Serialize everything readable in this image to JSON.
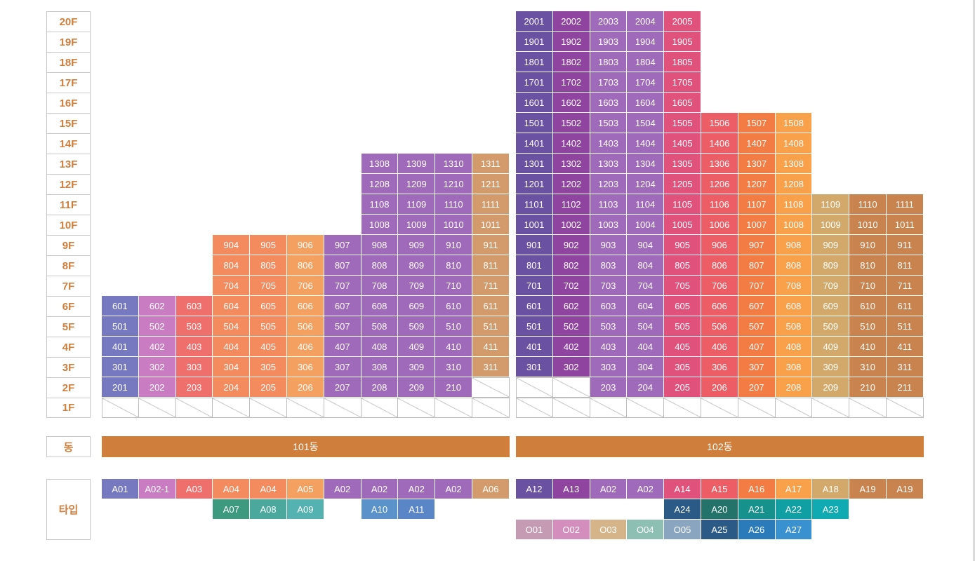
{
  "colors": {
    "A01": "#7679bf",
    "A02-1": "#c97cc1",
    "A03": "#ef6f6c",
    "A04": "#f38b5f",
    "A05": "#f4a061",
    "A02": "#a06aba",
    "A06": "#d39a6c",
    "A07": "#3e9a7e",
    "A08": "#4aa89c",
    "A09": "#54b3b1",
    "A10": "#5b92c9",
    "A11": "#5a85c6",
    "A12": "#6a51a2",
    "A13": "#8f44a0",
    "A14": "#e0517c",
    "A15": "#ec5d66",
    "A16": "#f27c43",
    "A17": "#f8a04a",
    "A18": "#d2a96a",
    "A19": "#c8834f",
    "A24": "#2c5a87",
    "A20": "#23736b",
    "A21": "#16918b",
    "A22": "#10a0a4",
    "A23": "#10aab2",
    "A25": "#2c5a87",
    "A26": "#2b7bbb",
    "A27": "#3991cf",
    "O01": "#c59ab3",
    "O02": "#d38ebd",
    "O03": "#d5b489",
    "O04": "#8ebfb3",
    "O05": "#8aa5bf"
  },
  "floors": [
    "20F",
    "19F",
    "18F",
    "17F",
    "16F",
    "15F",
    "14F",
    "13F",
    "12F",
    "11F",
    "10F",
    "9F",
    "8F",
    "7F",
    "6F",
    "5F",
    "4F",
    "3F",
    "2F",
    "1F"
  ],
  "row_labels": {
    "dong": "동",
    "type": "타입"
  },
  "buildings": [
    {
      "name": "101동",
      "columns": [
        {
          "type": "A01",
          "units": [
            "601",
            "501",
            "401",
            "301",
            "201"
          ]
        },
        {
          "type": "A02-1",
          "units": [
            "602",
            "502",
            "402",
            "302",
            "202"
          ]
        },
        {
          "type": "A03",
          "units": [
            "603",
            "503",
            "403",
            "303",
            "203"
          ]
        },
        {
          "type": "A04",
          "units": [
            "904",
            "804",
            "704",
            "604",
            "504",
            "404",
            "304",
            "204"
          ]
        },
        {
          "type": "A04",
          "units": [
            "905",
            "805",
            "705",
            "605",
            "505",
            "405",
            "305",
            "205"
          ]
        },
        {
          "type": "A05",
          "units": [
            "906",
            "806",
            "706",
            "606",
            "506",
            "406",
            "306",
            "206"
          ]
        },
        {
          "type": "A02",
          "units": [
            "907",
            "807",
            "707",
            "607",
            "507",
            "407",
            "307",
            "207"
          ]
        },
        {
          "type": "A02",
          "units": [
            "1308",
            "1208",
            "1108",
            "1008",
            "908",
            "808",
            "708",
            "608",
            "508",
            "408",
            "308",
            "208"
          ]
        },
        {
          "type": "A02",
          "units": [
            "1309",
            "1209",
            "1109",
            "1009",
            "909",
            "809",
            "709",
            "609",
            "509",
            "409",
            "309",
            "209"
          ]
        },
        {
          "type": "A02",
          "units": [
            "1310",
            "1210",
            "1110",
            "1010",
            "910",
            "810",
            "710",
            "610",
            "510",
            "410",
            "310",
            "210"
          ]
        },
        {
          "type": "A06",
          "units": [
            "1311",
            "1211",
            "1111",
            "1011",
            "911",
            "811",
            "711",
            "611",
            "511",
            "411",
            "311"
          ]
        }
      ]
    },
    {
      "name": "102동",
      "columns": [
        {
          "type": "A12",
          "units": [
            "2001",
            "1901",
            "1801",
            "1701",
            "1601",
            "1501",
            "1401",
            "1301",
            "1201",
            "1101",
            "1001",
            "901",
            "801",
            "701",
            "601",
            "501",
            "401",
            "301"
          ]
        },
        {
          "type": "A13",
          "units": [
            "2002",
            "1902",
            "1802",
            "1702",
            "1602",
            "1502",
            "1402",
            "1302",
            "1202",
            "1102",
            "1002",
            "902",
            "802",
            "702",
            "602",
            "502",
            "402",
            "302"
          ]
        },
        {
          "type": "A02",
          "units": [
            "2003",
            "1903",
            "1803",
            "1703",
            "1603",
            "1503",
            "1403",
            "1303",
            "1203",
            "1103",
            "1003",
            "903",
            "803",
            "703",
            "603",
            "503",
            "403",
            "303",
            "203"
          ]
        },
        {
          "type": "A02",
          "units": [
            "2004",
            "1904",
            "1804",
            "1704",
            "1604",
            "1504",
            "1404",
            "1304",
            "1204",
            "1104",
            "1004",
            "904",
            "804",
            "704",
            "604",
            "504",
            "404",
            "304",
            "204"
          ]
        },
        {
          "type": "A14",
          "units": [
            "2005",
            "1905",
            "1805",
            "1705",
            "1605",
            "1505",
            "1405",
            "1305",
            "1205",
            "1105",
            "1005",
            "905",
            "805",
            "705",
            "605",
            "505",
            "405",
            "305",
            "205"
          ]
        },
        {
          "type": "A15",
          "units": [
            "1506",
            "1406",
            "1306",
            "1206",
            "1106",
            "1006",
            "906",
            "806",
            "706",
            "606",
            "506",
            "406",
            "306",
            "206"
          ]
        },
        {
          "type": "A16",
          "units": [
            "1507",
            "1407",
            "1307",
            "1207",
            "1107",
            "1007",
            "907",
            "807",
            "707",
            "607",
            "507",
            "407",
            "307",
            "207"
          ]
        },
        {
          "type": "A17",
          "units": [
            "1508",
            "1408",
            "1308",
            "1208",
            "1108",
            "1008",
            "908",
            "808",
            "708",
            "608",
            "508",
            "408",
            "308",
            "208"
          ]
        },
        {
          "type": "A18",
          "units": [
            "1109",
            "1009",
            "909",
            "809",
            "709",
            "609",
            "509",
            "409",
            "309",
            "209"
          ]
        },
        {
          "type": "A19",
          "units": [
            "1110",
            "1010",
            "910",
            "810",
            "710",
            "610",
            "510",
            "410",
            "310",
            "210"
          ]
        },
        {
          "type": "A19",
          "units": [
            "1111",
            "1011",
            "911",
            "811",
            "711",
            "611",
            "511",
            "411",
            "311",
            "211"
          ]
        }
      ]
    }
  ],
  "type_rows": [
    [
      "A01",
      "A02-1",
      "A03",
      "A04",
      "A04",
      "A05",
      "A02",
      "A02",
      "A02",
      "A02",
      "A06",
      "A12",
      "A13",
      "A02",
      "A02",
      "A14",
      "A15",
      "A16",
      "A17",
      "A18",
      "A19",
      "A19"
    ],
    [
      "",
      "",
      "",
      "A07",
      "A08",
      "A09",
      "",
      "A10",
      "A11",
      "",
      "",
      "",
      "",
      "",
      "",
      "A24",
      "A20",
      "A21",
      "A22",
      "A23",
      "",
      ""
    ],
    [
      "",
      "",
      "",
      "",
      "",
      "",
      "",
      "",
      "",
      "",
      "",
      "O01",
      "O02",
      "O03",
      "O04",
      "O05",
      "A25",
      "A26",
      "A27",
      "",
      "",
      ""
    ]
  ]
}
